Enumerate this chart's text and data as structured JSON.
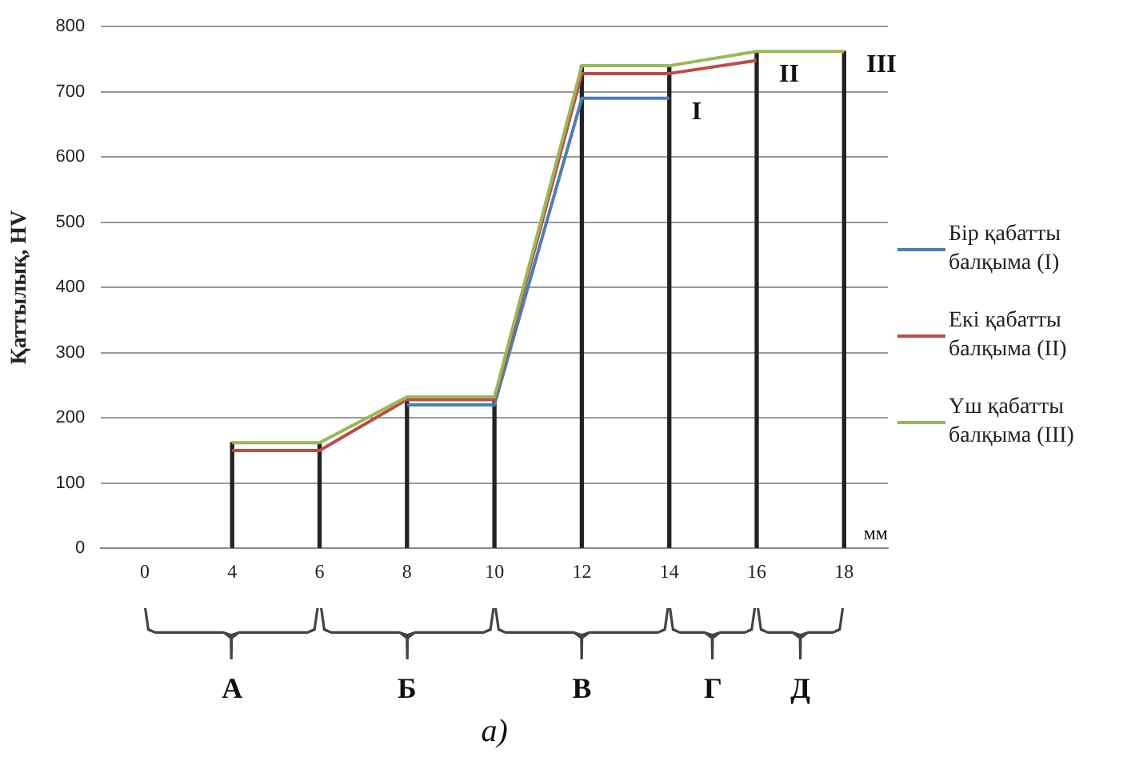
{
  "chart_data": {
    "type": "line",
    "ylabel": "Қаттылық, HV",
    "xlabel": "мм",
    "categories": [
      "0",
      "4",
      "6",
      "8",
      "10",
      "12",
      "14",
      "16",
      "18"
    ],
    "series": [
      {
        "name": "Бір қабатты балқыма (I)",
        "color": "#4a7ebb",
        "values": [
          null,
          null,
          null,
          220,
          220,
          690,
          690,
          null,
          null
        ]
      },
      {
        "name": "Екі қабатты балқыма (II)",
        "color": "#be4b48",
        "values": [
          null,
          150,
          150,
          228,
          228,
          728,
          728,
          748,
          null
        ]
      },
      {
        "name": "Үш қабатты балқыма (III)",
        "color": "#98b954",
        "values": [
          null,
          162,
          162,
          232,
          232,
          740,
          740,
          762,
          762
        ]
      },
      {
        "type": "bar",
        "color": "#222222",
        "values": [
          null,
          162,
          162,
          232,
          232,
          740,
          740,
          762,
          762
        ]
      }
    ],
    "ylim": [
      0,
      800
    ],
    "yticks": [
      0,
      100,
      200,
      300,
      400,
      500,
      600,
      700,
      800
    ],
    "grid": "y",
    "legend": "right",
    "marker": "none",
    "line_style": "solid",
    "annotations": [
      "I",
      "II",
      "III",
      "А",
      "Б",
      "В",
      "Г",
      "Д",
      "а)"
    ]
  }
}
